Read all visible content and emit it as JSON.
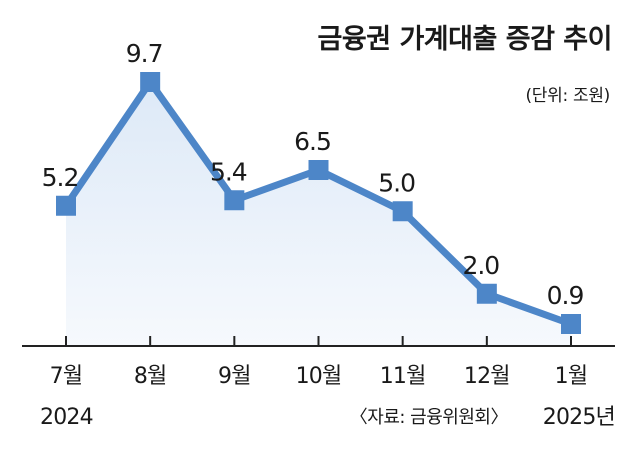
{
  "chart_data": {
    "type": "line",
    "title": "금융권 가계대출 증감 추이",
    "unit_label": "(단위: 조원)",
    "categories": [
      "7월",
      "8월",
      "9월",
      "10월",
      "11월",
      "12월",
      "1월"
    ],
    "values": [
      5.2,
      9.7,
      5.4,
      6.5,
      5.0,
      2.0,
      0.9
    ],
    "value_labels": [
      "5.2",
      "9.7",
      "5.4",
      "6.5",
      "5.0",
      "2.0",
      "0.9"
    ],
    "year_start": "2024",
    "year_end": "2025년",
    "source": "〈자료: 금융위원회〉",
    "ylim": [
      0,
      12
    ],
    "grid": false,
    "colors": {
      "line": "#4d86c8",
      "fill": "#eaf1fa",
      "axis": "#222222"
    }
  }
}
